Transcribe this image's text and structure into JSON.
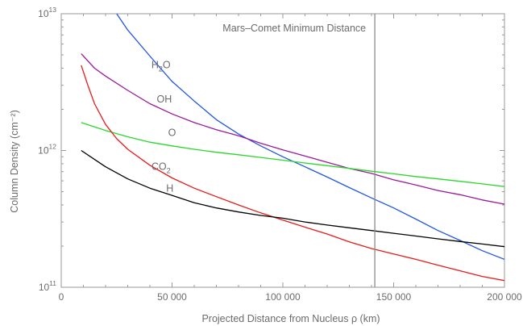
{
  "chart_data": {
    "type": "line",
    "xlabel": "Projected Distance from Nucleus ρ (km)",
    "ylabel": "Column Density (cm⁻²)",
    "xlim": [
      0,
      200000
    ],
    "ylim": [
      100000000000.0,
      10000000000000.0
    ],
    "yscale": "log",
    "x_ticks": [
      0,
      50000,
      100000,
      150000,
      200000
    ],
    "x_tick_labels": [
      "0",
      "50 000",
      "100 000",
      "150 000",
      "200 000"
    ],
    "y_tick_labels": [
      "10^11",
      "10^12",
      "10^13"
    ],
    "grid": false,
    "annotation": {
      "text": "Mars–Comet Minimum Distance",
      "x": 141500
    },
    "series": [
      {
        "name": "H2O",
        "color": "#2255e8",
        "points": [
          [
            25000,
            10000000000000.0
          ],
          [
            30000,
            7600000000000.0
          ],
          [
            40000,
            4900000000000.0
          ],
          [
            50000,
            3200000000000.0
          ],
          [
            60000,
            2300000000000.0
          ],
          [
            70000,
            1680000000000.0
          ],
          [
            80000,
            1320000000000.0
          ],
          [
            90000,
            1080000000000.0
          ],
          [
            100000,
            900000000000.0
          ],
          [
            110000,
            760000000000.0
          ],
          [
            120000,
            640000000000.0
          ],
          [
            130000,
            535000000000.0
          ],
          [
            140000,
            450000000000.0
          ],
          [
            150000,
            380000000000.0
          ],
          [
            160000,
            315000000000.0
          ],
          [
            170000,
            260000000000.0
          ],
          [
            180000,
            220000000000.0
          ],
          [
            190000,
            185000000000.0
          ],
          [
            200000,
            160000000000.0
          ]
        ]
      },
      {
        "name": "OH",
        "color": "#9a1a9a",
        "points": [
          [
            9000,
            5100000000000.0
          ],
          [
            15000,
            4000000000000.0
          ],
          [
            20000,
            3500000000000.0
          ],
          [
            30000,
            2750000000000.0
          ],
          [
            40000,
            2200000000000.0
          ],
          [
            50000,
            1850000000000.0
          ],
          [
            60000,
            1600000000000.0
          ],
          [
            70000,
            1420000000000.0
          ],
          [
            80000,
            1280000000000.0
          ],
          [
            90000,
            1130000000000.0
          ],
          [
            100000,
            1010000000000.0
          ],
          [
            110000,
            910000000000.0
          ],
          [
            120000,
            820000000000.0
          ],
          [
            130000,
            740000000000.0
          ],
          [
            140000,
            680000000000.0
          ],
          [
            150000,
            610000000000.0
          ],
          [
            160000,
            560000000000.0
          ],
          [
            170000,
            510000000000.0
          ],
          [
            180000,
            475000000000.0
          ],
          [
            190000,
            435000000000.0
          ],
          [
            200000,
            405000000000.0
          ]
        ]
      },
      {
        "name": "O",
        "color": "#2ad82a",
        "points": [
          [
            9000,
            1600000000000.0
          ],
          [
            20000,
            1400000000000.0
          ],
          [
            30000,
            1260000000000.0
          ],
          [
            40000,
            1150000000000.0
          ],
          [
            50000,
            1080000000000.0
          ],
          [
            60000,
            1020000000000.0
          ],
          [
            70000,
            970000000000.0
          ],
          [
            80000,
            930000000000.0
          ],
          [
            90000,
            890000000000.0
          ],
          [
            100000,
            850000000000.0
          ],
          [
            110000,
            810000000000.0
          ],
          [
            120000,
            775000000000.0
          ],
          [
            130000,
            740000000000.0
          ],
          [
            140000,
            705000000000.0
          ],
          [
            150000,
            675000000000.0
          ],
          [
            160000,
            645000000000.0
          ],
          [
            170000,
            620000000000.0
          ],
          [
            180000,
            595000000000.0
          ],
          [
            190000,
            570000000000.0
          ],
          [
            200000,
            545000000000.0
          ]
        ]
      },
      {
        "name": "CO2",
        "color": "#e81a1a",
        "points": [
          [
            9000,
            4200000000000.0
          ],
          [
            12000,
            3000000000000.0
          ],
          [
            15000,
            2200000000000.0
          ],
          [
            20000,
            1550000000000.0
          ],
          [
            25000,
            1220000000000.0
          ],
          [
            30000,
            1020000000000.0
          ],
          [
            40000,
            780000000000.0
          ],
          [
            50000,
            630000000000.0
          ],
          [
            60000,
            530000000000.0
          ],
          [
            70000,
            460000000000.0
          ],
          [
            80000,
            400000000000.0
          ],
          [
            90000,
            350000000000.0
          ],
          [
            100000,
            310000000000.0
          ],
          [
            110000,
            275000000000.0
          ],
          [
            120000,
            245000000000.0
          ],
          [
            130000,
            215000000000.0
          ],
          [
            140000,
            192000000000.0
          ],
          [
            150000,
            175000000000.0
          ],
          [
            160000,
            160000000000.0
          ],
          [
            170000,
            145000000000.0
          ],
          [
            180000,
            132000000000.0
          ],
          [
            190000,
            120000000000.0
          ],
          [
            200000,
            112000000000.0
          ]
        ]
      },
      {
        "name": "H",
        "color": "#000000",
        "points": [
          [
            9000,
            1000000000000.0
          ],
          [
            15000,
            860000000000.0
          ],
          [
            20000,
            760000000000.0
          ],
          [
            30000,
            620000000000.0
          ],
          [
            40000,
            530000000000.0
          ],
          [
            50000,
            470000000000.0
          ],
          [
            60000,
            415000000000.0
          ],
          [
            70000,
            380000000000.0
          ],
          [
            80000,
            355000000000.0
          ],
          [
            90000,
            335000000000.0
          ],
          [
            100000,
            320000000000.0
          ],
          [
            110000,
            300000000000.0
          ],
          [
            120000,
            285000000000.0
          ],
          [
            130000,
            272000000000.0
          ],
          [
            140000,
            260000000000.0
          ],
          [
            150000,
            248000000000.0
          ],
          [
            160000,
            237000000000.0
          ],
          [
            170000,
            226000000000.0
          ],
          [
            180000,
            216000000000.0
          ],
          [
            190000,
            207000000000.0
          ],
          [
            200000,
            198000000000.0
          ]
        ]
      }
    ],
    "series_labels": [
      {
        "name": "H2O",
        "base": "H",
        "sub": "2",
        "tail": "O",
        "x": 45000,
        "y": 4000000000000.0
      },
      {
        "name": "OH",
        "base": "OH",
        "sub": "",
        "tail": "",
        "x": 46500,
        "y": 2250000000000.0
      },
      {
        "name": "O",
        "base": "O",
        "sub": "",
        "tail": "",
        "x": 50000,
        "y": 1280000000000.0
      },
      {
        "name": "CO2",
        "base": "CO",
        "sub": "2",
        "tail": "",
        "x": 45000,
        "y": 720000000000.0
      },
      {
        "name": "H",
        "base": "H",
        "sub": "",
        "tail": "",
        "x": 49000,
        "y": 500000000000.0
      }
    ]
  }
}
